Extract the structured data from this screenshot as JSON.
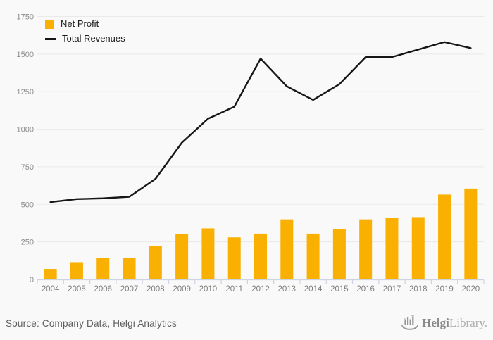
{
  "chart_data": {
    "type": "bar",
    "categories": [
      "2004",
      "2005",
      "2006",
      "2007",
      "2008",
      "2009",
      "2010",
      "2011",
      "2012",
      "2013",
      "2014",
      "2015",
      "2016",
      "2017",
      "2018",
      "2019",
      "2020"
    ],
    "series": [
      {
        "name": "Net Profit",
        "type": "bar",
        "color": "#F9B000",
        "values": [
          70,
          115,
          145,
          145,
          225,
          300,
          340,
          280,
          305,
          400,
          305,
          335,
          400,
          410,
          415,
          565,
          605
        ]
      },
      {
        "name": "Total Revenues",
        "type": "line",
        "color": "#161616",
        "values": [
          515,
          535,
          540,
          550,
          670,
          910,
          1070,
          1150,
          1470,
          1285,
          1195,
          1300,
          1480,
          1480,
          1530,
          1580,
          1540
        ]
      }
    ],
    "title": "",
    "xlabel": "",
    "ylabel": "",
    "ylim": [
      0,
      1750
    ],
    "yticks": [
      0,
      250,
      500,
      750,
      1000,
      1250,
      1500,
      1750
    ],
    "grid": true,
    "legend_position": "top-left"
  },
  "legend": {
    "net_profit_label": "Net Profit",
    "total_revenues_label": "Total Revenues"
  },
  "footer": {
    "source": "Source: Company Data, Helgi Analytics",
    "logo_bold": "Helgi",
    "logo_light": "Library."
  },
  "colors": {
    "background": "#f9f9f9",
    "bar": "#F9B000",
    "line": "#161616",
    "grid": "#e9e9e9",
    "axis": "#ccd3e2",
    "y_tick_label": "#8c8c8c",
    "x_tick_label": "#7d7d7d",
    "source_text": "#5e5e5e",
    "logo_gray": "#969696"
  }
}
